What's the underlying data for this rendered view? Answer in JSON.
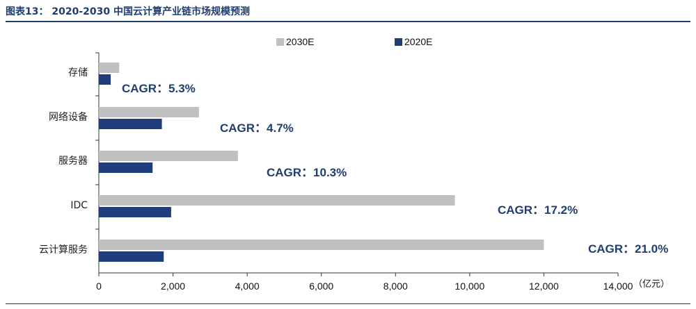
{
  "title": "图表13：  2020-2030 中国云计算产业链市场规模预测",
  "chart_data": {
    "type": "bar",
    "orientation": "horizontal",
    "categories": [
      "存储",
      "网络设备",
      "服务器",
      "IDC",
      "云计算服务"
    ],
    "series": [
      {
        "name": "2030E",
        "color": "#c0c0c0",
        "values": [
          550,
          2700,
          3750,
          9600,
          12000
        ]
      },
      {
        "name": "2020E",
        "color": "#1f3d7a",
        "values": [
          320,
          1700,
          1450,
          1950,
          1750
        ]
      }
    ],
    "annotations": [
      "CAGR：5.3%",
      "CAGR：4.7%",
      "CAGR：10.3%",
      "CAGR：17.2%",
      "CAGR：21.0%"
    ],
    "xlim": [
      0,
      14000
    ],
    "xticks": [
      "0",
      "2,000",
      "4,000",
      "6,000",
      "8,000",
      "10,000",
      "12,000",
      "14,000"
    ],
    "xunit": "（亿元）",
    "legend": "top"
  }
}
